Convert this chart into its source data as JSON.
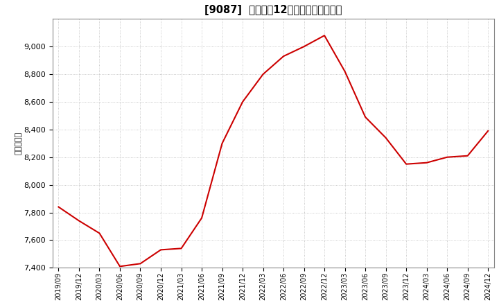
{
  "title": "[9087]  売上高の12か月移動合計の推移",
  "ylabel": "（百万円）",
  "line_color": "#cc0000",
  "background_color": "#ffffff",
  "plot_bg_color": "#ffffff",
  "grid_color": "#bbbbbb",
  "ylim": [
    7400,
    9200
  ],
  "yticks": [
    7400,
    7600,
    7800,
    8000,
    8200,
    8400,
    8600,
    8800,
    9000
  ],
  "dates": [
    "2019/09",
    "2019/12",
    "2020/03",
    "2020/06",
    "2020/09",
    "2020/12",
    "2021/03",
    "2021/06",
    "2021/09",
    "2021/12",
    "2022/03",
    "2022/06",
    "2022/09",
    "2022/12",
    "2023/03",
    "2023/06",
    "2023/09",
    "2023/12",
    "2024/03",
    "2024/06",
    "2024/09",
    "2024/12"
  ],
  "values": [
    7840,
    7740,
    7650,
    7410,
    7430,
    7530,
    7540,
    7760,
    8300,
    8600,
    8800,
    8930,
    9000,
    9080,
    8820,
    8490,
    8340,
    8150,
    8160,
    8200,
    8210,
    8390
  ]
}
